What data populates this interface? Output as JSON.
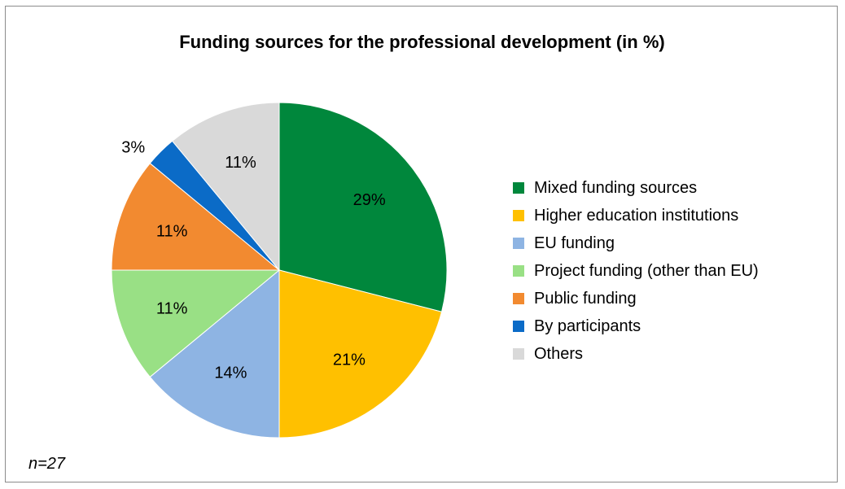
{
  "chart_data": {
    "type": "pie",
    "title": "Funding sources for the professional development (in %)",
    "note": "n=27",
    "legend_position": "right",
    "slices": [
      {
        "label": "Mixed funding sources",
        "value": 29,
        "value_label": "29%",
        "color": "#00873C"
      },
      {
        "label": "Higher education institutions",
        "value": 21,
        "value_label": "21%",
        "color": "#FFC000"
      },
      {
        "label": "EU funding",
        "value": 14,
        "value_label": "14%",
        "color": "#8EB4E3"
      },
      {
        "label": "Project funding (other than EU)",
        "value": 11,
        "value_label": "11%",
        "color": "#99E085"
      },
      {
        "label": "Public funding",
        "value": 11,
        "value_label": "11%",
        "color": "#F28A30"
      },
      {
        "label": "By participants",
        "value": 3,
        "value_label": "3%",
        "color": "#0B6BC7"
      },
      {
        "label": "Others",
        "value": 11,
        "value_label": "11%",
        "color": "#D9D9D9"
      }
    ]
  }
}
